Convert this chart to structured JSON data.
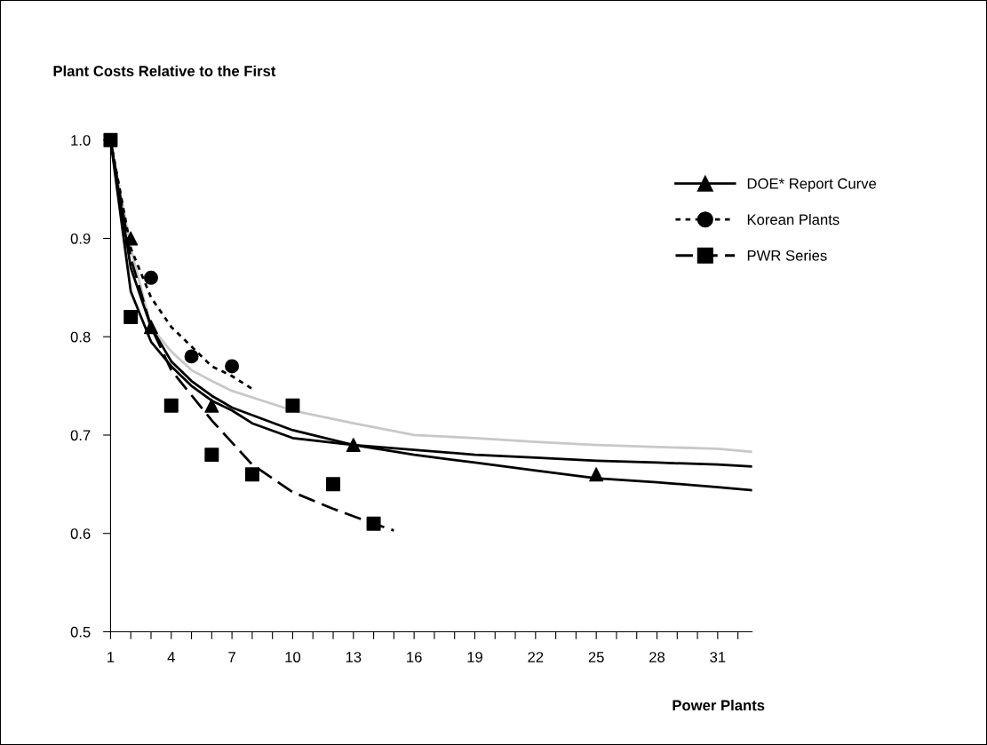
{
  "chart_data": {
    "type": "line",
    "ylabel": "Plant Costs Relative to the First",
    "xlabel": "Power Plants",
    "xlim": [
      1,
      32.7
    ],
    "ylim": [
      0.5,
      1.0
    ],
    "xticks": [
      1,
      {
        "value": 2,
        "label": null
      },
      {
        "value": 3,
        "label": null
      },
      4,
      {
        "value": 5,
        "label": null
      },
      {
        "value": 6,
        "label": null
      },
      7,
      {
        "value": 8,
        "label": null
      },
      {
        "value": 9,
        "label": null
      },
      10,
      {
        "value": 11,
        "label": null
      },
      {
        "value": 12,
        "label": null
      },
      13,
      {
        "value": 14,
        "label": null
      },
      {
        "value": 15,
        "label": null
      },
      16,
      {
        "value": 17,
        "label": null
      },
      {
        "value": 18,
        "label": null
      },
      19,
      {
        "value": 20,
        "label": null
      },
      {
        "value": 21,
        "label": null
      },
      22,
      {
        "value": 23,
        "label": null
      },
      {
        "value": 24,
        "label": null
      },
      25,
      {
        "value": 26,
        "label": null
      },
      {
        "value": 27,
        "label": null
      },
      28,
      {
        "value": 29,
        "label": null
      },
      {
        "value": 30,
        "label": null
      },
      31,
      {
        "value": 32,
        "label": null
      }
    ],
    "yticks": [
      0.5,
      0.6,
      0.7,
      0.8,
      0.9,
      {
        "value": 1,
        "label": "1.0"
      }
    ],
    "grid": false,
    "legend": "top right",
    "series": [
      {
        "type": "line",
        "color": "#c8c8c8",
        "line_style": "solid",
        "x": [
          1,
          2,
          3,
          4,
          5,
          6,
          7,
          10,
          13,
          16,
          19,
          22,
          25,
          28,
          31,
          32.7
        ],
        "values": [
          1.0,
          0.89,
          0.81,
          0.785,
          0.766,
          0.755,
          0.745,
          0.725,
          0.712,
          0.7,
          0.697,
          0.693,
          0.69,
          0.688,
          0.686,
          0.683
        ]
      },
      {
        "type": "line",
        "color": "#000000",
        "line_style": "solid",
        "x": [
          1,
          2,
          3,
          4,
          5,
          6,
          7,
          10,
          13,
          16,
          19,
          22,
          25,
          28,
          31,
          32.7
        ],
        "values": [
          1.0,
          0.87,
          0.81,
          0.775,
          0.755,
          0.74,
          0.728,
          0.705,
          0.69,
          0.68,
          0.672,
          0.664,
          0.656,
          0.652,
          0.647,
          0.644
        ]
      },
      {
        "type": "line",
        "color": "#000000",
        "line_style": "solid",
        "x": [
          1,
          2,
          3,
          4,
          5,
          6,
          7,
          8,
          10,
          13,
          16,
          19,
          22,
          25,
          28,
          31,
          32.7
        ],
        "values": [
          1.0,
          0.846,
          0.795,
          0.77,
          0.75,
          0.735,
          0.725,
          0.712,
          0.697,
          0.69,
          0.685,
          0.68,
          0.677,
          0.674,
          0.672,
          0.67,
          0.668
        ]
      },
      {
        "type": "line",
        "color": "#000000",
        "line_style": "dotted",
        "x": [
          1,
          2,
          3,
          4,
          5,
          6,
          7,
          8
        ],
        "values": [
          1.0,
          0.89,
          0.84,
          0.81,
          0.79,
          0.77,
          0.76,
          0.747
        ]
      },
      {
        "type": "line",
        "color": "#000000",
        "line_style": "dashed",
        "x": [
          1,
          2,
          3,
          4,
          6,
          8,
          10,
          12,
          14,
          15
        ],
        "values": [
          1.0,
          0.88,
          0.81,
          0.766,
          0.715,
          0.67,
          0.642,
          0.625,
          0.61,
          0.603
        ]
      },
      {
        "type": "scatter",
        "name": "DOE* Report Curve",
        "color": "#000000",
        "marker": "triangle",
        "line_style": "solid",
        "x": [
          2,
          3,
          6,
          13,
          25
        ],
        "values": [
          0.9,
          0.81,
          0.73,
          0.69,
          0.66
        ]
      },
      {
        "type": "scatter",
        "name": "Korean Plants",
        "color": "#000000",
        "marker": "circle",
        "line_style": "dotted",
        "x": [
          3,
          5,
          7
        ],
        "values": [
          0.86,
          0.78,
          0.77
        ]
      },
      {
        "type": "scatter",
        "name": "PWR Series",
        "color": "#000000",
        "marker": "square",
        "line_style": "dashed",
        "x": [
          1,
          2,
          4,
          6,
          8,
          10,
          12,
          14
        ],
        "values": [
          1.0,
          0.82,
          0.73,
          0.68,
          0.66,
          0.73,
          0.65,
          0.61
        ]
      }
    ]
  }
}
